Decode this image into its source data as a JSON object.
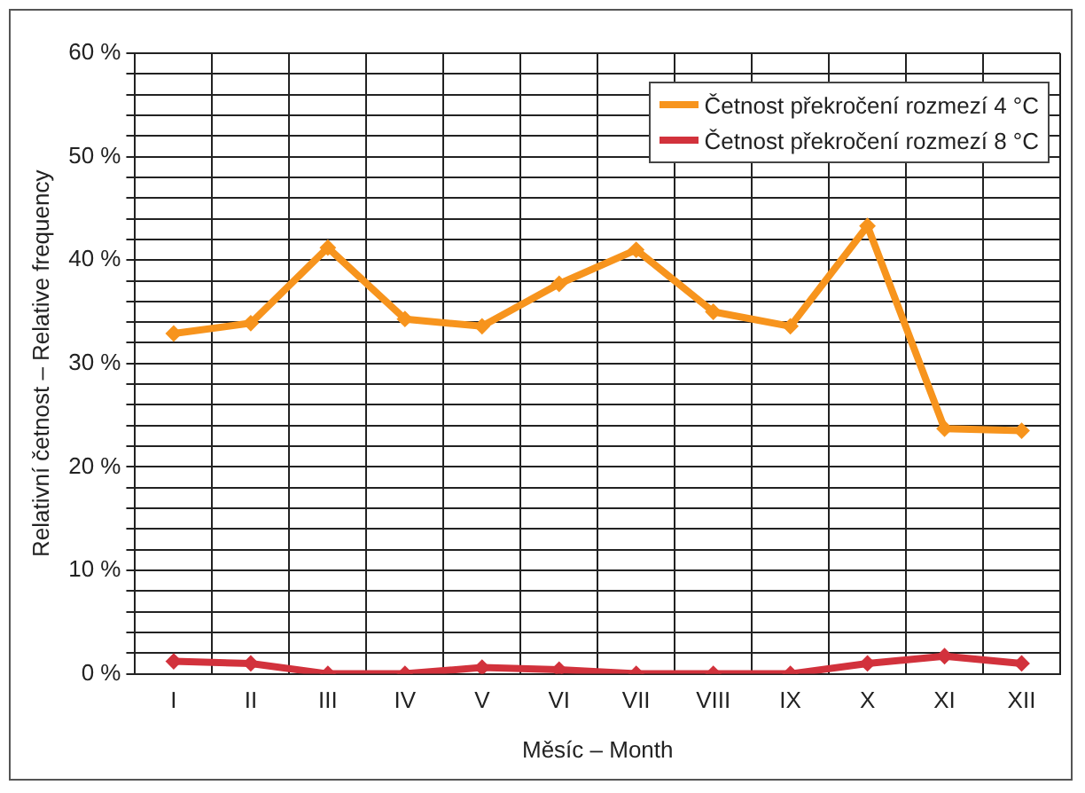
{
  "chart_data": {
    "type": "line",
    "categories": [
      "I",
      "II",
      "III",
      "IV",
      "V",
      "VI",
      "VII",
      "VIII",
      "IX",
      "X",
      "XI",
      "XII"
    ],
    "series": [
      {
        "name": "Četnost překročení rozmezí 4 °C",
        "color": "#f7941d",
        "values": [
          32.9,
          33.9,
          41.2,
          34.3,
          33.6,
          37.7,
          41.0,
          35.0,
          33.6,
          43.3,
          23.7,
          23.5
        ]
      },
      {
        "name": "Četnost překročení rozmezí 8 °C",
        "color": "#d2323c",
        "values": [
          1.2,
          1.0,
          0,
          0,
          0.6,
          0.4,
          0,
          0,
          0,
          1.0,
          1.7,
          1.0
        ]
      }
    ],
    "xlabel": "Měsíc – Month",
    "ylabel": "Relativní četnost – Relative frequency",
    "ylim": [
      0,
      60
    ],
    "yticks": [
      {
        "value": 0,
        "label": "0 %"
      },
      {
        "value": 2,
        "label": null
      },
      {
        "value": 4,
        "label": null
      },
      {
        "value": 6,
        "label": null
      },
      {
        "value": 8,
        "label": null
      },
      {
        "value": 10,
        "label": "10 %"
      },
      {
        "value": 12,
        "label": null
      },
      {
        "value": 14,
        "label": null
      },
      {
        "value": 16,
        "label": null
      },
      {
        "value": 18,
        "label": null
      },
      {
        "value": 20,
        "label": "20 %"
      },
      {
        "value": 22,
        "label": null
      },
      {
        "value": 24,
        "label": null
      },
      {
        "value": 26,
        "label": null
      },
      {
        "value": 28,
        "label": null
      },
      {
        "value": 30,
        "label": "30 %"
      },
      {
        "value": 32,
        "label": null
      },
      {
        "value": 34,
        "label": null
      },
      {
        "value": 36,
        "label": null
      },
      {
        "value": 38,
        "label": null
      },
      {
        "value": 40,
        "label": "40 %"
      },
      {
        "value": 42,
        "label": null
      },
      {
        "value": 44,
        "label": null
      },
      {
        "value": 46,
        "label": null
      },
      {
        "value": 48,
        "label": null
      },
      {
        "value": 50,
        "label": "50 %"
      },
      {
        "value": 52,
        "label": null
      },
      {
        "value": 54,
        "label": null
      },
      {
        "value": 56,
        "label": null
      },
      {
        "value": 58,
        "label": null
      },
      {
        "value": 60,
        "label": "60 %"
      }
    ],
    "grid": true,
    "legend": "top right",
    "marker": "diamond",
    "line_style": "solid"
  }
}
